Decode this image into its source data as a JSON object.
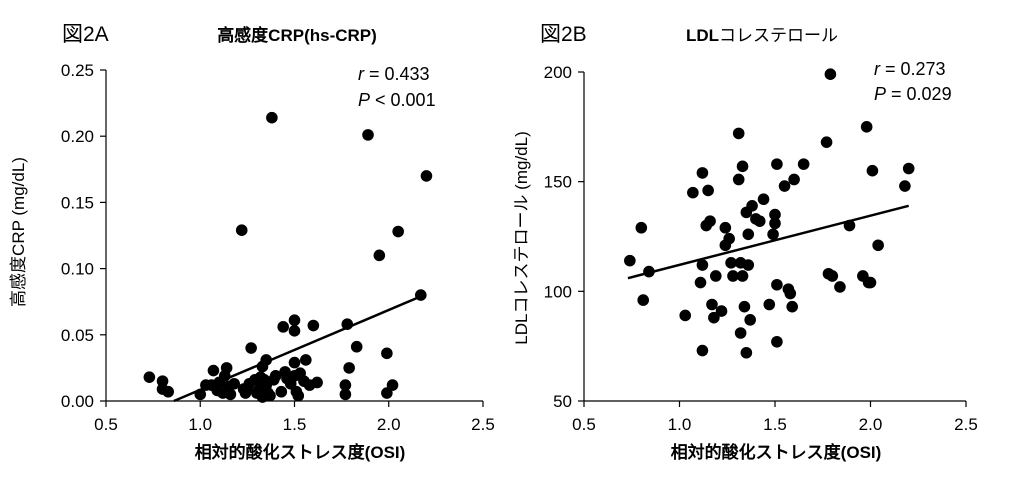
{
  "chart_data": [
    {
      "type": "scatter",
      "panel_label": "図2A",
      "title": "高感度CRP(hs-CRP)",
      "xlabel": "相対的酸化ストレス度(OSI)",
      "ylabel": "高感度CRP (mg/dL)",
      "xlim": [
        0.5,
        2.5
      ],
      "ylim": [
        0,
        0.25
      ],
      "xticks": [
        "0.5",
        "1.0",
        "1.5",
        "2.0",
        "2.5"
      ],
      "yticks": [
        "0.00",
        "0.05",
        "0.10",
        "0.15",
        "0.20",
        "0.25"
      ],
      "xtick_values": [
        0.5,
        1.0,
        1.5,
        2.0,
        2.5
      ],
      "ytick_values": [
        0,
        0.05,
        0.1,
        0.15,
        0.2,
        0.25
      ],
      "stats": {
        "r_label": "r",
        "r_value": " = 0.433",
        "p_label": "P",
        "p_value": " < 0.001"
      },
      "regression": {
        "x": [
          0.86,
          2.17
        ],
        "y": [
          0.0,
          0.079
        ]
      },
      "points": [
        [
          0.73,
          0.018
        ],
        [
          0.8,
          0.015
        ],
        [
          0.8,
          0.009
        ],
        [
          0.83,
          0.007
        ],
        [
          1.0,
          0.005
        ],
        [
          1.03,
          0.012
        ],
        [
          1.06,
          0.012
        ],
        [
          1.07,
          0.023
        ],
        [
          1.09,
          0.008
        ],
        [
          1.1,
          0.014
        ],
        [
          1.12,
          0.006
        ],
        [
          1.13,
          0.019
        ],
        [
          1.14,
          0.025
        ],
        [
          1.15,
          0.011
        ],
        [
          1.16,
          0.005
        ],
        [
          1.18,
          0.013
        ],
        [
          1.22,
          0.129
        ],
        [
          1.23,
          0.009
        ],
        [
          1.24,
          0.006
        ],
        [
          1.25,
          0.01
        ],
        [
          1.26,
          0.013
        ],
        [
          1.27,
          0.04
        ],
        [
          1.29,
          0.016
        ],
        [
          1.3,
          0.006
        ],
        [
          1.31,
          0.008
        ],
        [
          1.32,
          0.018
        ],
        [
          1.32,
          0.01
        ],
        [
          1.33,
          0.003
        ],
        [
          1.33,
          0.026
        ],
        [
          1.34,
          0.016
        ],
        [
          1.35,
          0.031
        ],
        [
          1.35,
          0.012
        ],
        [
          1.36,
          0.006
        ],
        [
          1.37,
          0.004
        ],
        [
          1.38,
          0.214
        ],
        [
          1.39,
          0.016
        ],
        [
          1.4,
          0.019
        ],
        [
          1.43,
          0.007
        ],
        [
          1.44,
          0.056
        ],
        [
          1.45,
          0.022
        ],
        [
          1.46,
          0.017
        ],
        [
          1.48,
          0.013
        ],
        [
          1.5,
          0.061
        ],
        [
          1.5,
          0.053
        ],
        [
          1.5,
          0.029
        ],
        [
          1.5,
          0.019
        ],
        [
          1.51,
          0.007
        ],
        [
          1.52,
          0.004
        ],
        [
          1.53,
          0.021
        ],
        [
          1.55,
          0.015
        ],
        [
          1.56,
          0.031
        ],
        [
          1.58,
          0.012
        ],
        [
          1.6,
          0.057
        ],
        [
          1.62,
          0.014
        ],
        [
          1.77,
          0.012
        ],
        [
          1.77,
          0.005
        ],
        [
          1.78,
          0.058
        ],
        [
          1.79,
          0.025
        ],
        [
          1.83,
          0.041
        ],
        [
          1.89,
          0.201
        ],
        [
          1.95,
          0.11
        ],
        [
          1.99,
          0.036
        ],
        [
          1.99,
          0.006
        ],
        [
          2.02,
          0.012
        ],
        [
          2.05,
          0.128
        ],
        [
          2.17,
          0.08
        ],
        [
          2.2,
          0.17
        ]
      ]
    },
    {
      "type": "scatter",
      "panel_label": "図2B",
      "title_bold": "LDL",
      "title_rest": "コレステロール",
      "xlabel": "相対的酸化ストレス度(OSI)",
      "ylabel": "LDLコレステロール (mg/dL)",
      "xlim": [
        0.5,
        2.5
      ],
      "ylim": [
        50,
        200
      ],
      "xticks": [
        "0.5",
        "1.0",
        "1.5",
        "2.0",
        "2.5"
      ],
      "yticks": [
        "50",
        "100",
        "150",
        "200"
      ],
      "xtick_values": [
        0.5,
        1.0,
        1.5,
        2.0,
        2.5
      ],
      "ytick_values": [
        50,
        100,
        150,
        200
      ],
      "stats": {
        "r_label": "r",
        "r_value": " = 0.273",
        "p_label": "P",
        "p_value": " = 0.029"
      },
      "regression": {
        "x": [
          0.73,
          2.2
        ],
        "y": [
          106,
          139
        ]
      },
      "points": [
        [
          0.74,
          114
        ],
        [
          0.8,
          129
        ],
        [
          0.81,
          96
        ],
        [
          0.84,
          109
        ],
        [
          1.03,
          89
        ],
        [
          1.07,
          145
        ],
        [
          1.11,
          104
        ],
        [
          1.12,
          73
        ],
        [
          1.12,
          112
        ],
        [
          1.12,
          154
        ],
        [
          1.14,
          130
        ],
        [
          1.15,
          146
        ],
        [
          1.16,
          132
        ],
        [
          1.17,
          94
        ],
        [
          1.18,
          88
        ],
        [
          1.19,
          107
        ],
        [
          1.22,
          91
        ],
        [
          1.24,
          121
        ],
        [
          1.24,
          129
        ],
        [
          1.26,
          124
        ],
        [
          1.27,
          113
        ],
        [
          1.28,
          107
        ],
        [
          1.31,
          172
        ],
        [
          1.31,
          151
        ],
        [
          1.32,
          81
        ],
        [
          1.32,
          113
        ],
        [
          1.33,
          157
        ],
        [
          1.33,
          107
        ],
        [
          1.34,
          93
        ],
        [
          1.35,
          72
        ],
        [
          1.35,
          136
        ],
        [
          1.36,
          126
        ],
        [
          1.36,
          112
        ],
        [
          1.37,
          87
        ],
        [
          1.38,
          139
        ],
        [
          1.4,
          133
        ],
        [
          1.42,
          132
        ],
        [
          1.44,
          142
        ],
        [
          1.47,
          94
        ],
        [
          1.49,
          126
        ],
        [
          1.5,
          135
        ],
        [
          1.5,
          131
        ],
        [
          1.51,
          158
        ],
        [
          1.51,
          103
        ],
        [
          1.51,
          77
        ],
        [
          1.55,
          148
        ],
        [
          1.57,
          101
        ],
        [
          1.58,
          99
        ],
        [
          1.59,
          93
        ],
        [
          1.6,
          151
        ],
        [
          1.65,
          158
        ],
        [
          1.77,
          168
        ],
        [
          1.78,
          108
        ],
        [
          1.79,
          199
        ],
        [
          1.8,
          107
        ],
        [
          1.84,
          102
        ],
        [
          1.89,
          130
        ],
        [
          1.96,
          107
        ],
        [
          1.98,
          175
        ],
        [
          1.99,
          104
        ],
        [
          2.0,
          104
        ],
        [
          2.01,
          155
        ],
        [
          2.04,
          121
        ],
        [
          2.18,
          148
        ],
        [
          2.2,
          156
        ]
      ]
    }
  ]
}
